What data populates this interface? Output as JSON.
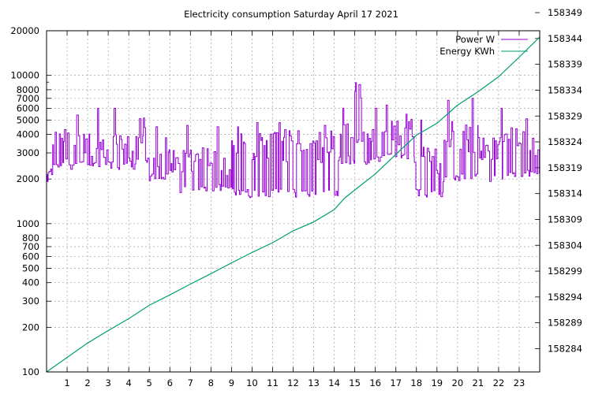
{
  "chart_data": {
    "type": "line",
    "title": "Electricity consumption Saturday April 17 2021",
    "grid": true,
    "legend_placement": "top-right",
    "x": {
      "range": [
        0,
        24
      ],
      "ticks": [
        "1",
        "2",
        "3",
        "4",
        "5",
        "6",
        "7",
        "8",
        "9",
        "10",
        "11",
        "12",
        "13",
        "14",
        "15",
        "16",
        "17",
        "18",
        "19",
        "20",
        "21",
        "22",
        "23"
      ]
    },
    "y_left": {
      "scale": "log",
      "range": [
        100,
        20000
      ],
      "tick_values": [
        100,
        200,
        300,
        400,
        500,
        600,
        700,
        800,
        1000,
        2000,
        3000,
        4000,
        5000,
        6000,
        7000,
        8000,
        10000,
        20000
      ],
      "tick_labels": [
        "100",
        "200",
        "300",
        "400",
        "500",
        "600",
        "700",
        "800",
        "1000",
        "2000",
        "3000",
        "4000",
        "5000",
        "6000",
        "7000",
        "8000",
        "10000",
        "20000"
      ]
    },
    "y_right": {
      "scale": "linear",
      "range": [
        158279.5,
        158345.5
      ],
      "tick_values": [
        158284,
        158289,
        158294,
        158299,
        158304,
        158309,
        158314,
        158319,
        158324,
        158329,
        158334,
        158339,
        158344,
        158349
      ],
      "tick_labels": [
        "158284",
        "158289",
        "158294",
        "158299",
        "158304",
        "158309",
        "158314",
        "158319",
        "158324",
        "158329",
        "158334",
        "158339",
        "158344",
        "158349"
      ]
    },
    "series": [
      {
        "name": "Power W",
        "axis": "left",
        "color": "#9400d3",
        "style": "steps",
        "segments": [
          {
            "from": 0,
            "to": 0.3,
            "low": 2100,
            "high": 2300
          },
          {
            "from": 0.3,
            "to": 2.1,
            "low": 2300,
            "high": 4500
          },
          {
            "from": 2.1,
            "to": 4.3,
            "low": 2300,
            "high": 4000
          },
          {
            "from": 4.3,
            "to": 5.0,
            "low": 2500,
            "high": 5300
          },
          {
            "from": 5.0,
            "to": 6.0,
            "low": 1900,
            "high": 3300
          },
          {
            "from": 6.0,
            "to": 9.0,
            "low": 1600,
            "high": 3300
          },
          {
            "from": 9.0,
            "to": 14.2,
            "low": 1500,
            "high": 4300
          },
          {
            "from": 14.2,
            "to": 15.0,
            "low": 2500,
            "high": 5200
          },
          {
            "from": 15.0,
            "to": 15.4,
            "low": 3300,
            "high": 9300
          },
          {
            "from": 15.4,
            "to": 16.0,
            "low": 2400,
            "high": 4500
          },
          {
            "from": 16.0,
            "to": 17.9,
            "low": 2600,
            "high": 5500
          },
          {
            "from": 17.9,
            "to": 19.3,
            "low": 1500,
            "high": 3300
          },
          {
            "from": 19.3,
            "to": 21.0,
            "low": 1900,
            "high": 5000
          },
          {
            "from": 21.0,
            "to": 22.2,
            "low": 1900,
            "high": 4000
          },
          {
            "from": 22.2,
            "to": 24.0,
            "low": 2000,
            "high": 4500
          }
        ],
        "peaks": [
          {
            "x": 1.5,
            "value": 5400
          },
          {
            "x": 2.5,
            "value": 6000
          },
          {
            "x": 3.3,
            "value": 6000
          },
          {
            "x": 5.3,
            "value": 4500
          },
          {
            "x": 5.8,
            "value": 3800
          },
          {
            "x": 6.8,
            "value": 4600
          },
          {
            "x": 8.3,
            "value": 4500
          },
          {
            "x": 9.3,
            "value": 4500
          },
          {
            "x": 10.2,
            "value": 4800
          },
          {
            "x": 11.3,
            "value": 4800
          },
          {
            "x": 13.5,
            "value": 4600
          },
          {
            "x": 14.4,
            "value": 6000
          },
          {
            "x": 16.0,
            "value": 6000
          },
          {
            "x": 16.5,
            "value": 6300
          },
          {
            "x": 18.2,
            "value": 5000
          },
          {
            "x": 19.5,
            "value": 6800
          },
          {
            "x": 20.7,
            "value": 7000
          },
          {
            "x": 22.1,
            "value": 6000
          },
          {
            "x": 23.3,
            "value": 5100
          }
        ]
      },
      {
        "name": "Energy KWh",
        "axis": "right",
        "color": "#009e73",
        "style": "line",
        "x": [
          0,
          1,
          2,
          3,
          4,
          5,
          6,
          7,
          8,
          9,
          10,
          11,
          12,
          13,
          14,
          14.5,
          15,
          16,
          17,
          18,
          19,
          20,
          21,
          22,
          23,
          24
        ],
        "y": [
          158279.5,
          158282.3,
          158285.1,
          158287.5,
          158289.8,
          158292.4,
          158294.4,
          158296.5,
          158298.5,
          158300.6,
          158302.6,
          158304.5,
          158306.8,
          158308.5,
          158310.9,
          158313.1,
          158314.7,
          158317.8,
          158321.6,
          158325.3,
          158327.6,
          158331.1,
          158333.7,
          158336.6,
          158340.4,
          158344.3
        ]
      }
    ]
  }
}
